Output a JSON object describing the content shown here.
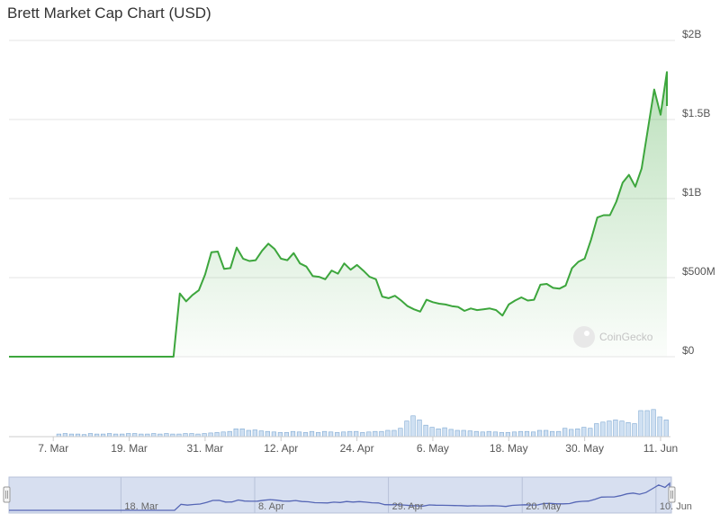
{
  "colors": {
    "line": "#3da63d",
    "volume_fill": "#cfe0f2",
    "volume_stroke": "#7ea9d3",
    "navigator_fill": "#d7dff0",
    "navigator_line": "#5566b5",
    "grid": "#e6e6e6"
  },
  "watermark": {
    "text": "CoinGecko",
    "icon": "gecko-logo-icon"
  },
  "chart_data": {
    "type": "area",
    "title": "Brett Market Cap Chart (USD)",
    "y_unit": "USD",
    "ylim": [
      0,
      2000000000
    ],
    "y_ticks": [
      {
        "value": 0,
        "label": "$0"
      },
      {
        "value": 500000000,
        "label": "$500M"
      },
      {
        "value": 1000000000,
        "label": "$1B"
      },
      {
        "value": 1500000000,
        "label": "$1.5B"
      },
      {
        "value": 2000000000,
        "label": "$2B"
      }
    ],
    "x_range": [
      "2024-02-29",
      "2024-06-12"
    ],
    "x_ticks": [
      {
        "date": "2024-03-07",
        "label": "7. Mar"
      },
      {
        "date": "2024-03-19",
        "label": "19. Mar"
      },
      {
        "date": "2024-03-31",
        "label": "31. Mar"
      },
      {
        "date": "2024-04-12",
        "label": "12. Apr"
      },
      {
        "date": "2024-04-24",
        "label": "24. Apr"
      },
      {
        "date": "2024-05-06",
        "label": "6. May"
      },
      {
        "date": "2024-05-18",
        "label": "18. May"
      },
      {
        "date": "2024-05-30",
        "label": "30. May"
      },
      {
        "date": "2024-06-11",
        "label": "11. Jun"
      }
    ],
    "grid": true,
    "legend": "none",
    "series": [
      {
        "kind": "market_cap",
        "points": [
          [
            "2024-02-29",
            0
          ],
          [
            "2024-03-07",
            0
          ],
          [
            "2024-03-14",
            0
          ],
          [
            "2024-03-21",
            0
          ],
          [
            "2024-03-26",
            0
          ],
          [
            "2024-03-27",
            400000000
          ],
          [
            "2024-03-28",
            350000000
          ],
          [
            "2024-03-29",
            390000000
          ],
          [
            "2024-03-30",
            420000000
          ],
          [
            "2024-03-31",
            520000000
          ],
          [
            "2024-04-01",
            660000000
          ],
          [
            "2024-04-02",
            665000000
          ],
          [
            "2024-04-03",
            555000000
          ],
          [
            "2024-04-04",
            560000000
          ],
          [
            "2024-04-05",
            690000000
          ],
          [
            "2024-04-06",
            620000000
          ],
          [
            "2024-04-07",
            605000000
          ],
          [
            "2024-04-08",
            610000000
          ],
          [
            "2024-04-09",
            670000000
          ],
          [
            "2024-04-10",
            715000000
          ],
          [
            "2024-04-11",
            680000000
          ],
          [
            "2024-04-12",
            620000000
          ],
          [
            "2024-04-13",
            610000000
          ],
          [
            "2024-04-14",
            655000000
          ],
          [
            "2024-04-15",
            590000000
          ],
          [
            "2024-04-16",
            570000000
          ],
          [
            "2024-04-17",
            510000000
          ],
          [
            "2024-04-18",
            505000000
          ],
          [
            "2024-04-19",
            490000000
          ],
          [
            "2024-04-20",
            545000000
          ],
          [
            "2024-04-21",
            525000000
          ],
          [
            "2024-04-22",
            590000000
          ],
          [
            "2024-04-23",
            550000000
          ],
          [
            "2024-04-24",
            580000000
          ],
          [
            "2024-04-25",
            545000000
          ],
          [
            "2024-04-26",
            505000000
          ],
          [
            "2024-04-27",
            490000000
          ],
          [
            "2024-04-28",
            380000000
          ],
          [
            "2024-04-29",
            370000000
          ],
          [
            "2024-04-30",
            385000000
          ],
          [
            "2024-05-01",
            355000000
          ],
          [
            "2024-05-02",
            320000000
          ],
          [
            "2024-05-03",
            300000000
          ],
          [
            "2024-05-04",
            285000000
          ],
          [
            "2024-05-05",
            360000000
          ],
          [
            "2024-05-06",
            345000000
          ],
          [
            "2024-05-07",
            335000000
          ],
          [
            "2024-05-08",
            330000000
          ],
          [
            "2024-05-09",
            320000000
          ],
          [
            "2024-05-10",
            315000000
          ],
          [
            "2024-05-11",
            290000000
          ],
          [
            "2024-05-12",
            305000000
          ],
          [
            "2024-05-13",
            295000000
          ],
          [
            "2024-05-14",
            300000000
          ],
          [
            "2024-05-15",
            305000000
          ],
          [
            "2024-05-16",
            295000000
          ],
          [
            "2024-05-17",
            260000000
          ],
          [
            "2024-05-18",
            330000000
          ],
          [
            "2024-05-19",
            355000000
          ],
          [
            "2024-05-20",
            375000000
          ],
          [
            "2024-05-21",
            355000000
          ],
          [
            "2024-05-22",
            360000000
          ],
          [
            "2024-05-23",
            455000000
          ],
          [
            "2024-05-24",
            460000000
          ],
          [
            "2024-05-25",
            435000000
          ],
          [
            "2024-05-26",
            430000000
          ],
          [
            "2024-05-27",
            450000000
          ],
          [
            "2024-05-28",
            560000000
          ],
          [
            "2024-05-29",
            600000000
          ],
          [
            "2024-05-30",
            620000000
          ],
          [
            "2024-05-31",
            740000000
          ],
          [
            "2024-06-01",
            880000000
          ],
          [
            "2024-06-02",
            895000000
          ],
          [
            "2024-06-03",
            895000000
          ],
          [
            "2024-06-04",
            980000000
          ],
          [
            "2024-06-05",
            1100000000
          ],
          [
            "2024-06-06",
            1150000000
          ],
          [
            "2024-06-07",
            1075000000
          ],
          [
            "2024-06-08",
            1190000000
          ],
          [
            "2024-06-09",
            1440000000
          ],
          [
            "2024-06-10",
            1690000000
          ],
          [
            "2024-06-11",
            1530000000
          ],
          [
            "2024-06-12",
            1800000000
          ],
          [
            "2024-06-13",
            1630000000
          ],
          [
            "2024-06-14",
            1585000000
          ]
        ]
      },
      {
        "kind": "volume",
        "relative_values": [
          0.05,
          0.06,
          0.05,
          0.05,
          0.04,
          0.06,
          0.05,
          0.05,
          0.06,
          0.05,
          0.05,
          0.06,
          0.06,
          0.05,
          0.05,
          0.06,
          0.05,
          0.06,
          0.05,
          0.05,
          0.06,
          0.06,
          0.05,
          0.06,
          0.07,
          0.08,
          0.09,
          0.1,
          0.15,
          0.15,
          0.12,
          0.13,
          0.11,
          0.1,
          0.09,
          0.08,
          0.08,
          0.1,
          0.09,
          0.08,
          0.1,
          0.08,
          0.1,
          0.09,
          0.08,
          0.09,
          0.1,
          0.1,
          0.08,
          0.09,
          0.1,
          0.1,
          0.12,
          0.12,
          0.16,
          0.3,
          0.4,
          0.32,
          0.22,
          0.18,
          0.15,
          0.17,
          0.14,
          0.12,
          0.12,
          0.11,
          0.1,
          0.09,
          0.1,
          0.09,
          0.08,
          0.08,
          0.09,
          0.1,
          0.1,
          0.09,
          0.12,
          0.12,
          0.1,
          0.1,
          0.16,
          0.14,
          0.15,
          0.18,
          0.16,
          0.25,
          0.28,
          0.3,
          0.32,
          0.3,
          0.27,
          0.25,
          0.5,
          0.5,
          0.52,
          0.38,
          0.32,
          0.55,
          0.48,
          0.9,
          0.6,
          0.8,
          0.55
        ]
      }
    ],
    "navigator": {
      "ticks": [
        {
          "date": "2024-03-18",
          "label": "18. Mar"
        },
        {
          "date": "2024-04-08",
          "label": "8. Apr"
        },
        {
          "date": "2024-04-29",
          "label": "29. Apr"
        },
        {
          "date": "2024-05-20",
          "label": "20. May"
        },
        {
          "date": "2024-06-10",
          "label": "10. Jun"
        }
      ]
    }
  }
}
